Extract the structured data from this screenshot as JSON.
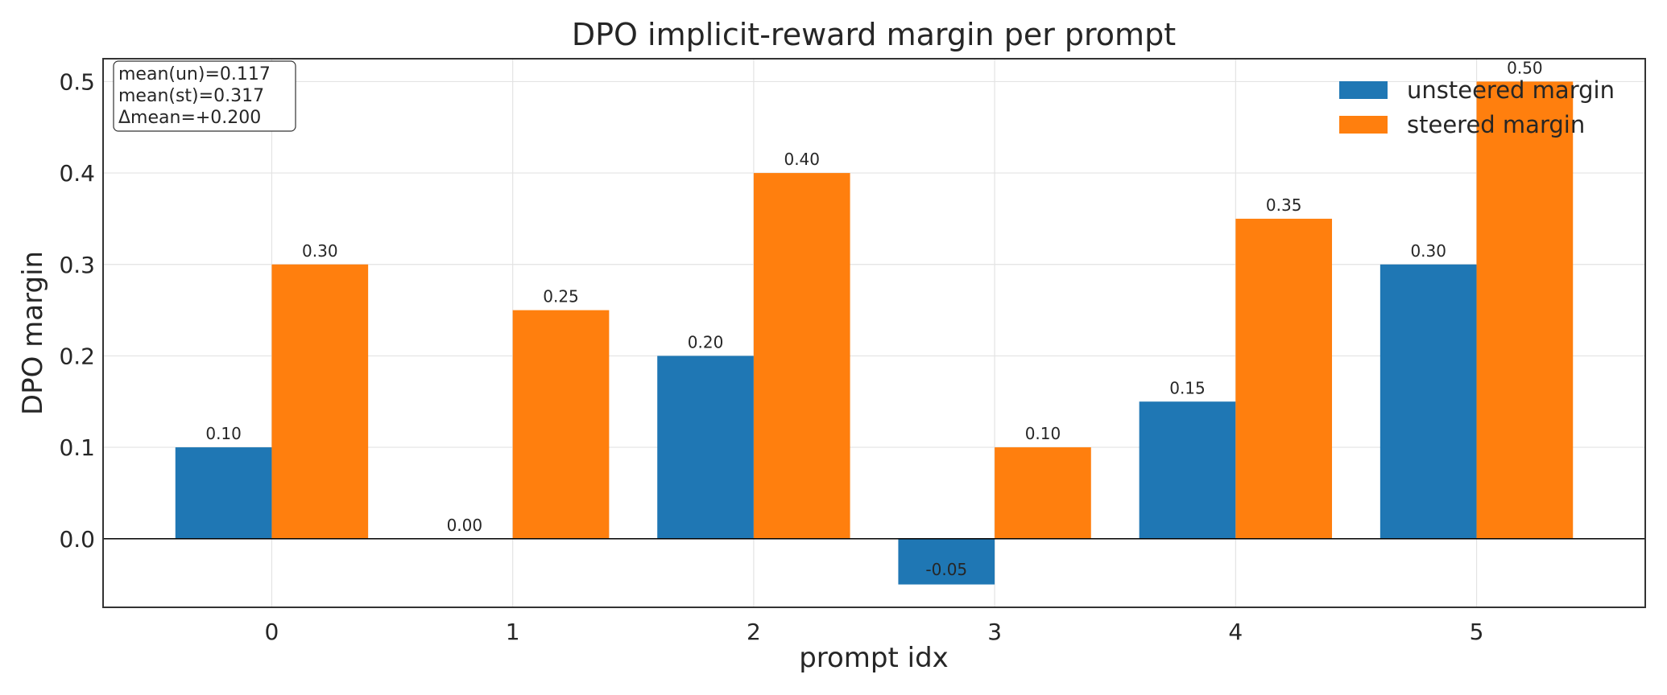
{
  "chart_data": {
    "type": "bar",
    "title": "DPO implicit-reward margin per prompt",
    "xlabel": "prompt idx",
    "ylabel": "DPO margin",
    "categories": [
      "0",
      "1",
      "2",
      "3",
      "4",
      "5"
    ],
    "series": [
      {
        "name": "unsteered margin",
        "color": "#1f77b4",
        "values": [
          0.1,
          0.0,
          0.2,
          -0.05,
          0.15,
          0.3
        ],
        "labels": [
          "0.10",
          "0.00",
          "0.20",
          "-0.05",
          "0.15",
          "0.30"
        ]
      },
      {
        "name": "steered margin",
        "color": "#ff7f0e",
        "values": [
          0.3,
          0.25,
          0.4,
          0.1,
          0.35,
          0.5
        ],
        "labels": [
          "0.30",
          "0.25",
          "0.40",
          "0.10",
          "0.35",
          "0.50"
        ]
      }
    ],
    "ylim": [
      -0.075,
      0.525
    ],
    "yticks": [
      0.0,
      0.1,
      0.2,
      0.3,
      0.4,
      0.5
    ],
    "ytick_labels": [
      "0.0",
      "0.1",
      "0.2",
      "0.3",
      "0.4",
      "0.5"
    ],
    "grid": true,
    "zero_line": true,
    "legend_position": "top-right",
    "annotation": [
      "mean(un)=0.117",
      "mean(st)=0.317",
      "Δmean=+0.200"
    ]
  }
}
